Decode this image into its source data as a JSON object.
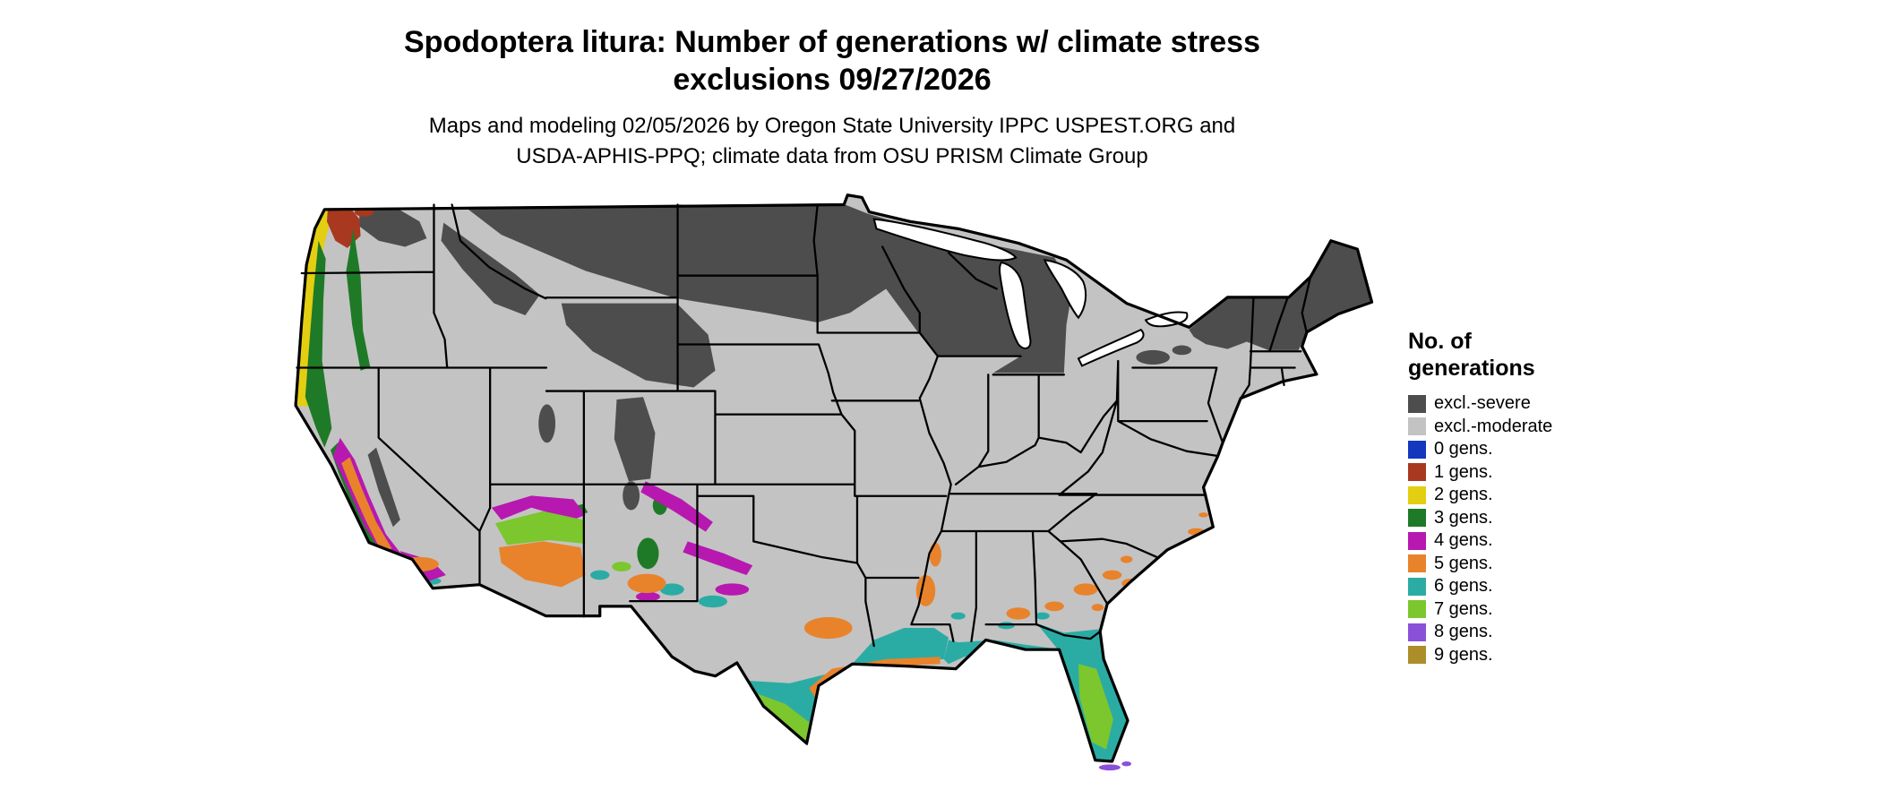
{
  "title": {
    "line1": "Spodoptera litura: Number of generations w/ climate stress",
    "line2": "exclusions 09/27/2026"
  },
  "subtitle": {
    "line1": "Maps and modeling 02/05/2026 by Oregon State University IPPC USPEST.ORG and",
    "line2": "USDA-APHIS-PPQ; climate data from OSU PRISM Climate Group"
  },
  "legend": {
    "title_line1": "No. of",
    "title_line2": "generations",
    "items": [
      {
        "key": "excl_severe",
        "label": "excl.-severe",
        "color": "#4D4D4D"
      },
      {
        "key": "excl_moderate",
        "label": "excl.-moderate",
        "color": "#C3C3C3"
      },
      {
        "key": "gens0",
        "label": "0 gens.",
        "color": "#1437BE"
      },
      {
        "key": "gens1",
        "label": "1 gens.",
        "color": "#A83820"
      },
      {
        "key": "gens2",
        "label": "2 gens.",
        "color": "#E3CE12"
      },
      {
        "key": "gens3",
        "label": "3 gens.",
        "color": "#1E7A26"
      },
      {
        "key": "gens4",
        "label": "4 gens.",
        "color": "#B718B0"
      },
      {
        "key": "gens5",
        "label": "5 gens.",
        "color": "#E8832C"
      },
      {
        "key": "gens6",
        "label": "6 gens.",
        "color": "#2AACA4"
      },
      {
        "key": "gens7",
        "label": "7 gens.",
        "color": "#7CC62E"
      },
      {
        "key": "gens8",
        "label": "8 gens.",
        "color": "#8B50D8"
      },
      {
        "key": "gens9",
        "label": "9 gens.",
        "color": "#AD8D2A"
      }
    ]
  }
}
